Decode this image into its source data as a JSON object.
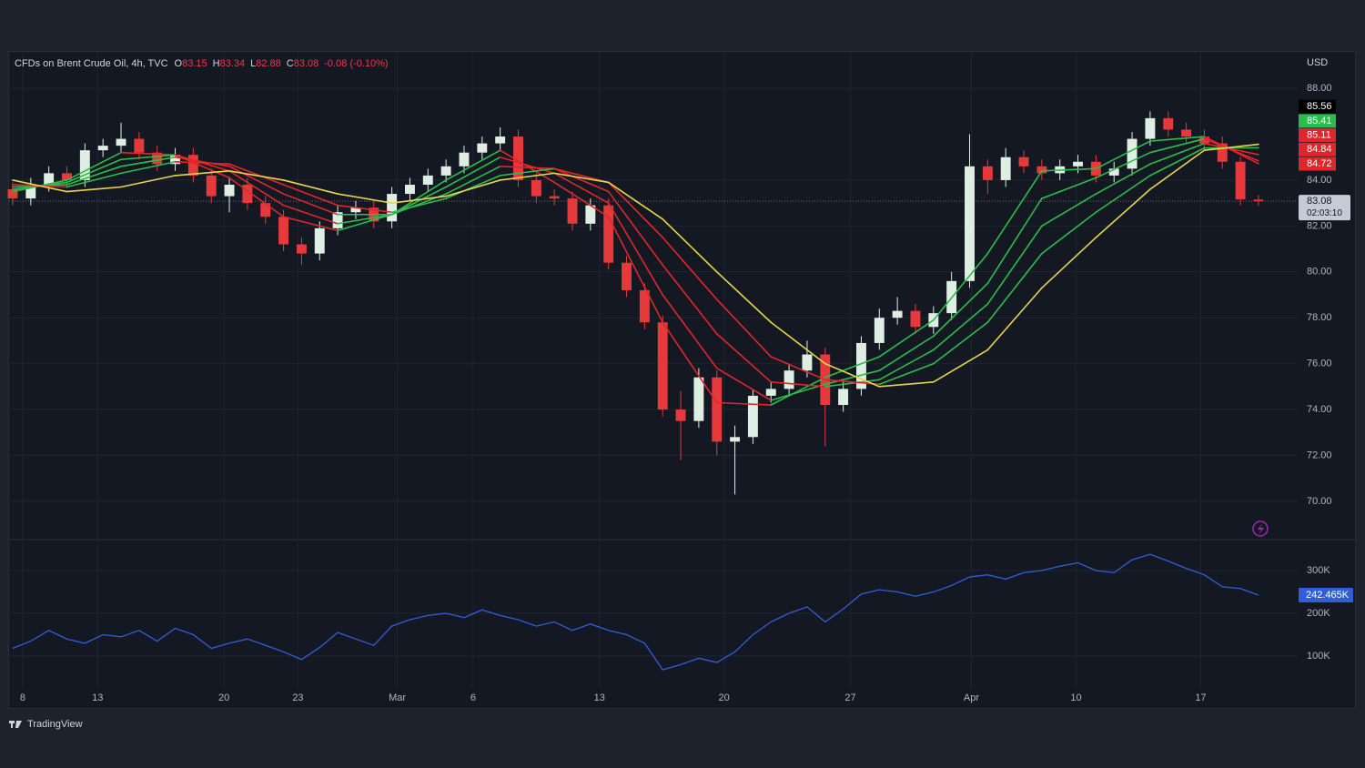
{
  "header": {
    "symbol": "CFDs on Brent Crude Oil, 4h, TVC",
    "ohlc_keys": [
      "O",
      "H",
      "L",
      "C"
    ],
    "change": "-0.08 (-0.10%)",
    "branding": "TradingView"
  },
  "chart_data": [
    {
      "type": "candlestick",
      "currency": "USD",
      "countdown": "02:03:10",
      "grid": true,
      "up_color": "#dfeee2",
      "down_color": "#e5393b",
      "xlim": [
        -0.2,
        71.12
      ],
      "xticks": [
        {
          "value": 0.55,
          "label": "8"
        },
        {
          "value": 4.7,
          "label": "13"
        },
        {
          "value": 11.7,
          "label": "20"
        },
        {
          "value": 15.8,
          "label": "23"
        },
        {
          "value": 21.3,
          "label": "Mar"
        },
        {
          "value": 25.5,
          "label": "6"
        },
        {
          "value": 32.5,
          "label": "13"
        },
        {
          "value": 39.4,
          "label": "20"
        },
        {
          "value": 46.4,
          "label": "27"
        },
        {
          "value": 53.1,
          "label": "Apr"
        },
        {
          "value": 58.9,
          "label": "10"
        },
        {
          "value": 65.8,
          "label": "17"
        }
      ],
      "ylim": [
        68.37,
        89.59
      ],
      "yticks": [
        {
          "value": 70,
          "label": "70.00"
        },
        {
          "value": 72,
          "label": "72.00"
        },
        {
          "value": 74,
          "label": "74.00"
        },
        {
          "value": 76,
          "label": "76.00"
        },
        {
          "value": 78,
          "label": "78.00"
        },
        {
          "value": 80,
          "label": "80.00"
        },
        {
          "value": 82,
          "label": "82.00"
        },
        {
          "value": 84,
          "label": "84.00"
        },
        {
          "value": 88,
          "label": "88.00"
        }
      ],
      "x": [
        0,
        1,
        2,
        3,
        4,
        5,
        6,
        7,
        8,
        9,
        10,
        11,
        12,
        13,
        14,
        15,
        16,
        17,
        18,
        19,
        20,
        21,
        22,
        23,
        24,
        25,
        26,
        27,
        28,
        29,
        30,
        31,
        32,
        33,
        34,
        35,
        36,
        37,
        38,
        39,
        40,
        41,
        42,
        43,
        44,
        45,
        46,
        47,
        48,
        49,
        50,
        51,
        52,
        53,
        54,
        55,
        56,
        57,
        58,
        59,
        60,
        61,
        62,
        63,
        64,
        65,
        66,
        67,
        68,
        69
      ],
      "open": [
        83.6,
        83.2,
        83.8,
        84.3,
        84.0,
        85.3,
        85.5,
        85.8,
        85.2,
        84.7,
        85.1,
        84.2,
        83.3,
        83.8,
        83.0,
        82.4,
        81.2,
        80.8,
        81.9,
        82.6,
        82.8,
        82.2,
        83.4,
        83.8,
        84.2,
        84.6,
        85.2,
        85.6,
        85.9,
        84.0,
        83.3,
        83.2,
        82.1,
        82.9,
        80.4,
        79.2,
        77.8,
        74.0,
        73.5,
        75.4,
        72.6,
        72.8,
        74.6,
        74.9,
        75.7,
        76.4,
        74.2,
        74.9,
        76.9,
        78.0,
        78.3,
        77.6,
        78.2,
        79.6,
        84.6,
        84.0,
        85.0,
        84.6,
        84.3,
        84.6,
        84.8,
        84.2,
        84.5,
        85.8,
        86.7,
        86.2,
        85.9,
        85.6,
        84.8,
        83.15
      ],
      "high": [
        83.9,
        84.1,
        84.6,
        84.6,
        85.6,
        85.8,
        86.5,
        86.1,
        85.5,
        85.4,
        85.4,
        84.5,
        84.1,
        84.1,
        83.3,
        82.7,
        81.5,
        82.2,
        82.9,
        83.1,
        83.1,
        83.7,
        84.1,
        84.5,
        84.9,
        85.5,
        85.9,
        86.3,
        86.2,
        84.3,
        83.6,
        83.5,
        83.2,
        83.2,
        80.7,
        79.5,
        78.1,
        74.8,
        75.8,
        75.7,
        73.3,
        74.9,
        75.2,
        76.0,
        77.0,
        76.7,
        75.2,
        77.2,
        78.4,
        78.9,
        78.6,
        78.5,
        80.0,
        86.0,
        84.9,
        85.4,
        85.3,
        84.9,
        84.9,
        85.1,
        85.1,
        84.8,
        86.1,
        87.0,
        87.0,
        86.5,
        86.2,
        85.9,
        85.0,
        83.34
      ],
      "low": [
        82.9,
        82.9,
        83.5,
        83.7,
        83.7,
        85.0,
        85.2,
        84.9,
        84.4,
        84.4,
        83.9,
        83.0,
        82.6,
        82.7,
        82.1,
        80.9,
        80.3,
        80.5,
        81.6,
        82.3,
        81.9,
        81.9,
        83.1,
        83.5,
        83.9,
        84.3,
        84.9,
        85.3,
        83.7,
        83.0,
        82.9,
        81.8,
        81.8,
        80.1,
        78.9,
        77.5,
        73.7,
        71.8,
        73.2,
        72.0,
        70.3,
        72.5,
        74.3,
        74.6,
        75.4,
        72.4,
        73.9,
        74.6,
        76.6,
        77.7,
        77.3,
        77.3,
        77.9,
        79.3,
        83.4,
        83.7,
        84.3,
        84.0,
        84.0,
        84.3,
        83.9,
        83.9,
        84.2,
        85.5,
        85.9,
        85.6,
        85.3,
        84.5,
        82.9,
        82.88
      ],
      "close": [
        83.2,
        83.8,
        84.3,
        84.0,
        85.3,
        85.5,
        85.8,
        85.2,
        84.7,
        85.1,
        84.2,
        83.3,
        83.8,
        83.0,
        82.4,
        81.2,
        80.8,
        81.9,
        82.6,
        82.8,
        82.2,
        83.4,
        83.8,
        84.2,
        84.6,
        85.2,
        85.6,
        85.9,
        84.0,
        83.3,
        83.2,
        82.1,
        82.9,
        80.4,
        79.2,
        77.8,
        74.0,
        73.5,
        75.4,
        72.6,
        72.8,
        74.6,
        74.9,
        75.7,
        76.4,
        74.2,
        74.9,
        76.9,
        78.0,
        78.3,
        77.6,
        78.2,
        79.6,
        84.6,
        84.0,
        85.0,
        84.6,
        84.3,
        84.6,
        84.8,
        84.2,
        84.5,
        85.8,
        86.7,
        86.2,
        85.9,
        85.6,
        84.8,
        83.16,
        83.08
      ],
      "moving_averages": {
        "rising_color": "#2bbd4a",
        "falling_color": "#e0262b",
        "x": [
          0,
          3,
          6,
          9,
          12,
          15,
          18,
          21,
          24,
          27,
          30,
          33,
          36,
          39,
          42,
          45,
          48,
          51,
          54,
          57,
          60,
          63,
          66,
          69
        ],
        "series": [
          {
            "values": [
              83.5,
              84.0,
              85.2,
              85.1,
              84.1,
              82.4,
              81.8,
              82.5,
              84.0,
              85.3,
              83.9,
              82.4,
              77.8,
              74.3,
              74.2,
              75.4,
              76.3,
              77.9,
              80.8,
              84.4,
              84.5,
              85.7,
              85.9,
              84.72
            ]
          },
          {
            "values": [
              83.6,
              83.9,
              84.9,
              85.1,
              84.4,
              82.9,
              82.1,
              82.5,
              83.7,
              85.0,
              84.3,
              83.0,
              79.0,
              75.8,
              74.4,
              75.1,
              75.7,
              77.2,
              79.5,
              83.2,
              84.1,
              85.2,
              85.8,
              84.84
            ]
          },
          {
            "values": [
              83.7,
              83.8,
              84.6,
              85.0,
              84.6,
              83.4,
              82.5,
              82.5,
              83.4,
              84.6,
              84.5,
              83.5,
              80.3,
              77.3,
              75.2,
              75.0,
              75.3,
              76.6,
              78.6,
              82.0,
              83.4,
              84.7,
              85.6,
              85.11
            ]
          },
          {
            "values": [
              83.8,
              83.7,
              84.3,
              84.8,
              84.7,
              83.8,
              82.9,
              82.6,
              83.2,
              84.2,
              84.5,
              83.9,
              81.5,
              78.8,
              76.3,
              75.3,
              75.1,
              76.0,
              77.8,
              80.8,
              82.6,
              84.2,
              85.4,
              85.41
            ]
          },
          {
            "color": "#e6d54a",
            "values": [
              84.0,
              83.5,
              83.7,
              84.2,
              84.4,
              84.0,
              83.4,
              83.0,
              83.3,
              84.0,
              84.3,
              83.9,
              82.3,
              80.0,
              77.8,
              76.0,
              75.0,
              75.2,
              76.6,
              79.3,
              81.5,
              83.6,
              85.3,
              85.56
            ]
          }
        ]
      }
    },
    {
      "type": "line",
      "color": "#2f5fd8",
      "grid": true,
      "last_value_label": "242.465K",
      "xlim": [
        -0.2,
        71.12
      ],
      "ylim": [
        23400,
        370200
      ],
      "yticks": [
        {
          "value": 100000,
          "label": "100K"
        },
        {
          "value": 200000,
          "label": "200K"
        },
        {
          "value": 300000,
          "label": "300K"
        }
      ],
      "x": [
        0,
        1,
        2,
        3,
        4,
        5,
        6,
        7,
        8,
        9,
        10,
        11,
        12,
        13,
        14,
        15,
        16,
        17,
        18,
        19,
        20,
        21,
        22,
        23,
        24,
        25,
        26,
        27,
        28,
        29,
        30,
        31,
        32,
        33,
        34,
        35,
        36,
        37,
        38,
        39,
        40,
        41,
        42,
        43,
        44,
        45,
        46,
        47,
        48,
        49,
        50,
        51,
        52,
        53,
        54,
        55,
        56,
        57,
        58,
        59,
        60,
        61,
        62,
        63,
        64,
        65,
        66,
        67,
        68,
        69
      ],
      "values": [
        118000,
        135000,
        160000,
        140000,
        130000,
        150000,
        145000,
        160000,
        135000,
        165000,
        150000,
        118000,
        130000,
        140000,
        125000,
        110000,
        92000,
        120000,
        155000,
        140000,
        125000,
        170000,
        185000,
        195000,
        200000,
        190000,
        208000,
        195000,
        185000,
        170000,
        180000,
        160000,
        175000,
        160000,
        150000,
        130000,
        68000,
        80000,
        95000,
        85000,
        110000,
        150000,
        180000,
        200000,
        215000,
        180000,
        210000,
        245000,
        255000,
        250000,
        240000,
        250000,
        265000,
        285000,
        290000,
        280000,
        295000,
        300000,
        310000,
        318000,
        300000,
        295000,
        325000,
        338000,
        322000,
        305000,
        290000,
        262000,
        258000,
        242465
      ]
    }
  ]
}
